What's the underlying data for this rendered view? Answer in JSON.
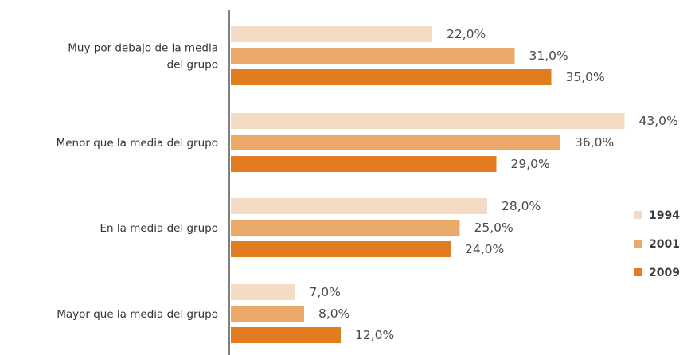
{
  "chart_data": {
    "type": "bar",
    "orientation": "horizontal",
    "categories": [
      [
        "Muy por debajo de la media",
        "del grupo"
      ],
      [
        "Menor que la media del grupo"
      ],
      [
        "En la media del grupo"
      ],
      [
        "Mayor que la media del grupo"
      ]
    ],
    "series": [
      {
        "name": "1994",
        "values": [
          22.0,
          43.0,
          28.0,
          7.0
        ],
        "value_labels": [
          "22,0%",
          "43,0%",
          "28,0%",
          "7,0%"
        ],
        "color": "#f3dcc3"
      },
      {
        "name": "2001",
        "values": [
          31.0,
          36.0,
          25.0,
          8.0
        ],
        "value_labels": [
          "31,0%",
          "36,0%",
          "25,0%",
          "8,0%"
        ],
        "color": "#eba96a"
      },
      {
        "name": "2009",
        "values": [
          35.0,
          29.0,
          24.0,
          12.0
        ],
        "value_labels": [
          "35,0%",
          "29,0%",
          "24,0%",
          "12,0%"
        ],
        "color": "#e37b20"
      }
    ],
    "xlim": [
      0,
      45
    ],
    "grid": false,
    "legend_position": "right"
  }
}
